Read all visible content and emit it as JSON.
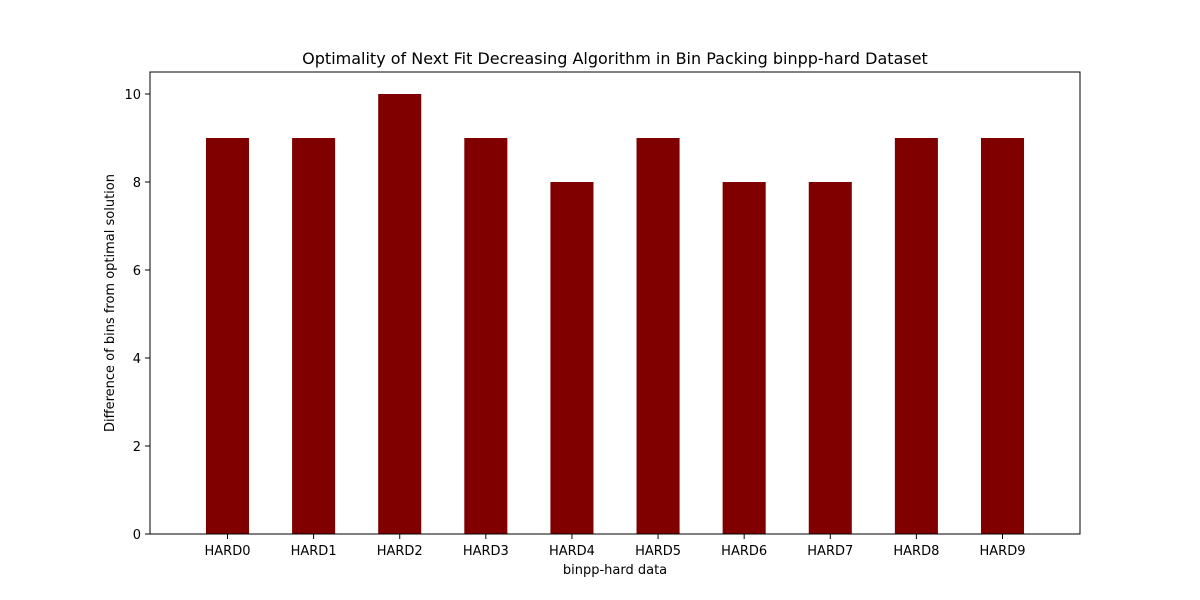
{
  "chart_data": {
    "type": "bar",
    "title": "Optimality of Next Fit Decreasing Algorithm in Bin Packing binpp-hard Dataset",
    "xlabel": "binpp-hard data",
    "ylabel": "Difference of bins from optimal solution",
    "categories": [
      "HARD0",
      "HARD1",
      "HARD2",
      "HARD3",
      "HARD4",
      "HARD5",
      "HARD6",
      "HARD7",
      "HARD8",
      "HARD9"
    ],
    "values": [
      9,
      9,
      10,
      9,
      8,
      9,
      8,
      8,
      9,
      9
    ],
    "ylim": [
      0,
      10.5
    ],
    "yticks": [
      0,
      2,
      4,
      6,
      8,
      10
    ],
    "bar_color": "#800000",
    "grid": false,
    "legend": false
  }
}
